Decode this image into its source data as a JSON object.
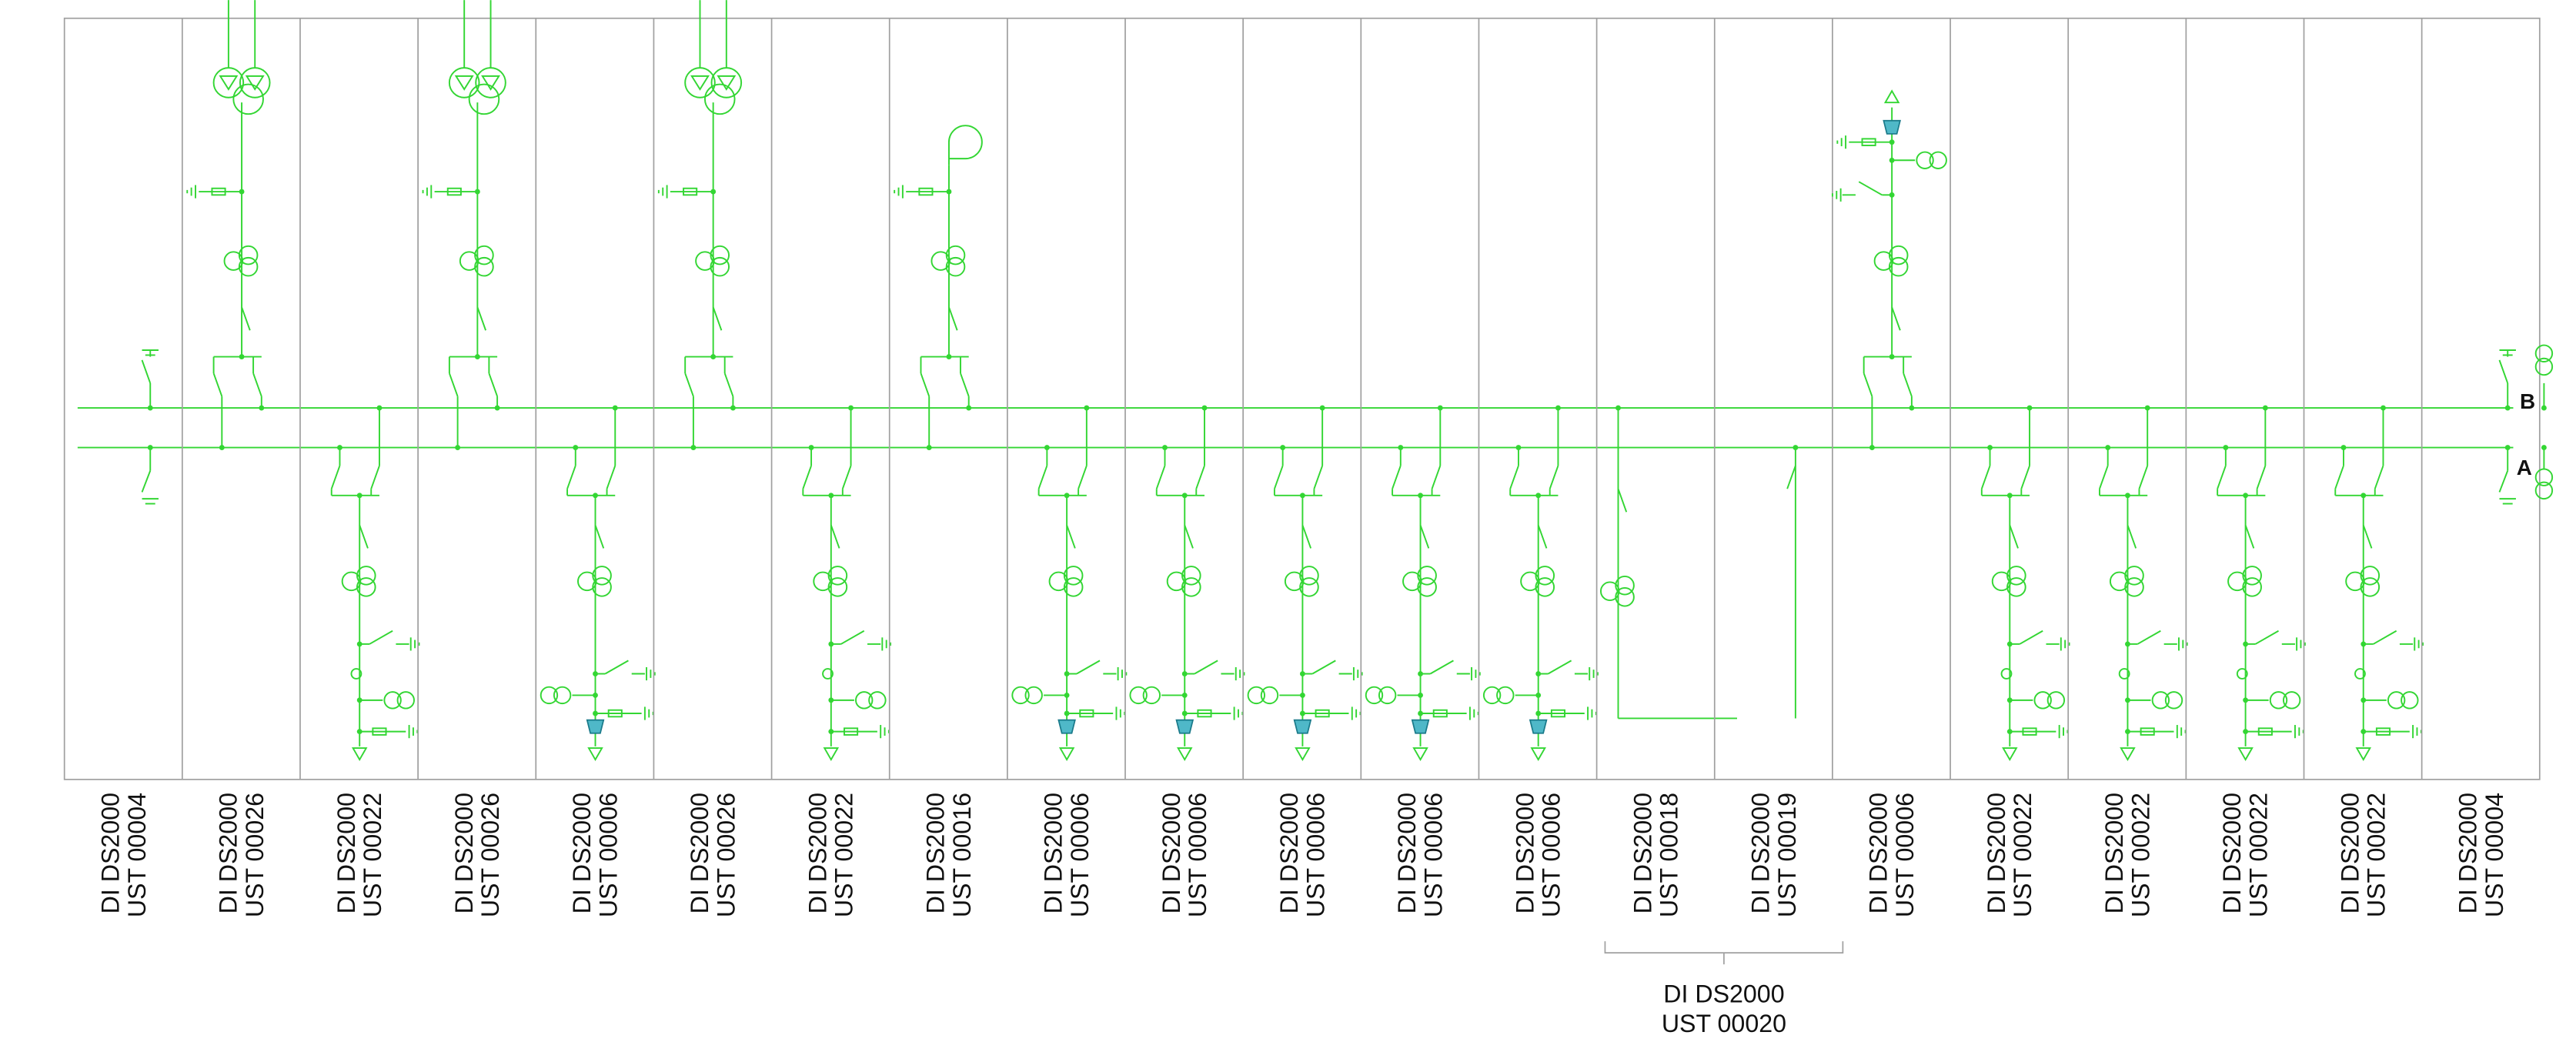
{
  "panels": [
    {
      "line1": "DI DS2000",
      "line2": "UST 00004"
    },
    {
      "line1": "DI DS2000",
      "line2": "UST 00026"
    },
    {
      "line1": "DI DS2000",
      "line2": "UST 00022"
    },
    {
      "line1": "DI DS2000",
      "line2": "UST 00026"
    },
    {
      "line1": "DI DS2000",
      "line2": "UST 00006"
    },
    {
      "line1": "DI DS2000",
      "line2": "UST 00026"
    },
    {
      "line1": "DI DS2000",
      "line2": "UST 00022"
    },
    {
      "line1": "DI DS2000",
      "line2": "UST 00016"
    },
    {
      "line1": "DI DS2000",
      "line2": "UST 00006"
    },
    {
      "line1": "DI DS2000",
      "line2": "UST 00006"
    },
    {
      "line1": "DI DS2000",
      "line2": "UST 00006"
    },
    {
      "line1": "DI DS2000",
      "line2": "UST 00006"
    },
    {
      "line1": "DI DS2000",
      "line2": "UST 00006"
    },
    {
      "line1": "DI DS2000",
      "line2": "UST 00018"
    },
    {
      "line1": "DI DS2000",
      "line2": "UST 00019"
    },
    {
      "line1": "DI DS2000",
      "line2": "UST 00006"
    },
    {
      "line1": "DI DS2000",
      "line2": "UST 00022"
    },
    {
      "line1": "DI DS2000",
      "line2": "UST 00022"
    },
    {
      "line1": "DI DS2000",
      "line2": "UST 00022"
    },
    {
      "line1": "DI DS2000",
      "line2": "UST 00022"
    },
    {
      "line1": "DI DS2000",
      "line2": "UST 00004"
    }
  ],
  "group": {
    "line1": "DI DS2000",
    "line2": "UST 00020"
  },
  "buses": {
    "b": "B",
    "a": "A"
  }
}
